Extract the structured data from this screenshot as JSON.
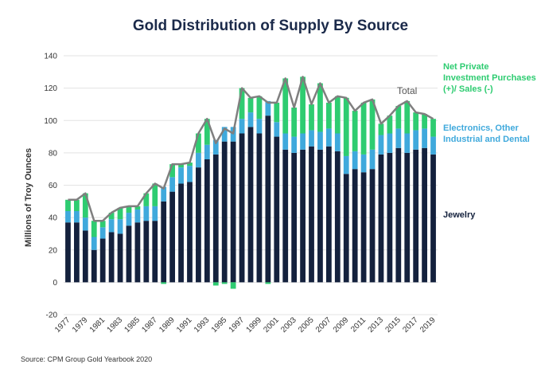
{
  "chart_data": {
    "type": "bar",
    "title": "Gold Distribution of Supply By Source",
    "ylabel": "Millions of Troy Ounces",
    "source": "Source: CPM Group Gold Yearbook 2020",
    "ylim": [
      -20,
      140
    ],
    "yticks": [
      -20,
      0,
      20,
      40,
      60,
      80,
      100,
      120,
      140
    ],
    "grid": true,
    "x": [
      1977,
      1978,
      1979,
      1980,
      1981,
      1982,
      1983,
      1984,
      1985,
      1986,
      1987,
      1988,
      1989,
      1990,
      1991,
      1992,
      1993,
      1994,
      1995,
      1996,
      1997,
      1998,
      1999,
      2000,
      2001,
      2002,
      2003,
      2004,
      2005,
      2006,
      2007,
      2008,
      2009,
      2010,
      2011,
      2012,
      2013,
      2014,
      2015,
      2016,
      2017,
      2018,
      2019
    ],
    "xtick_labels": [
      "1977",
      "1979",
      "1981",
      "1983",
      "1985",
      "1987",
      "1989",
      "1991",
      "1993",
      "1995",
      "1997",
      "1999",
      "2001",
      "2003",
      "2005",
      "2007",
      "2009",
      "2011",
      "2013",
      "2015",
      "2017",
      "2019"
    ],
    "series": [
      {
        "name": "Jewelry",
        "color": "#14213d",
        "values": [
          37,
          37,
          32,
          20,
          27,
          31,
          30,
          35,
          37,
          38,
          38,
          50,
          56,
          61,
          62,
          71,
          76,
          79,
          87,
          87,
          92,
          96,
          92,
          103,
          90,
          82,
          80,
          82,
          84,
          82,
          84,
          81,
          67,
          70,
          68,
          70,
          79,
          80,
          83,
          80,
          82,
          83,
          79
        ]
      },
      {
        "name": "Electronics, Other Industrial and Dental",
        "color": "#3fa9dc",
        "values": [
          7,
          7,
          8,
          8,
          7,
          8,
          9,
          8,
          8,
          9,
          9,
          9,
          9,
          10,
          10,
          9,
          9,
          9,
          9,
          9,
          9,
          9,
          9,
          9,
          9,
          10,
          10,
          10,
          10,
          11,
          11,
          11,
          11,
          11,
          11,
          12,
          12,
          12,
          12,
          12,
          12,
          12,
          11
        ]
      },
      {
        "name": "Net Private Investment Purchases (+)/ Sales (-)",
        "color": "#2ecc71",
        "values": [
          7,
          7,
          15,
          10,
          4,
          4,
          7,
          4,
          2,
          8,
          14,
          -1,
          8,
          2,
          2,
          12,
          16,
          -2,
          -1,
          -4,
          19,
          9,
          14,
          -1,
          12,
          34,
          18,
          35,
          16,
          30,
          16,
          23,
          36,
          25,
          32,
          31,
          7,
          11,
          14,
          20,
          11,
          9,
          11
        ]
      }
    ],
    "total": {
      "name": "Total",
      "color": "#7f7f7f",
      "values": [
        51,
        51,
        55,
        38,
        38,
        43,
        46,
        47,
        47,
        55,
        61,
        58,
        73,
        73,
        74,
        92,
        101,
        86,
        95,
        92,
        120,
        114,
        115,
        111,
        111,
        126,
        108,
        127,
        110,
        123,
        111,
        115,
        114,
        106,
        111,
        113,
        98,
        103,
        109,
        112,
        105,
        104,
        101
      ]
    },
    "legend_placement": "right",
    "legend_labels": {
      "investment": "Net Private Investment Purchases (+)/ Sales (-)",
      "industrial": "Electronics, Other Industrial and Dental",
      "jewelry": "Jewelry",
      "total": "Total"
    }
  }
}
